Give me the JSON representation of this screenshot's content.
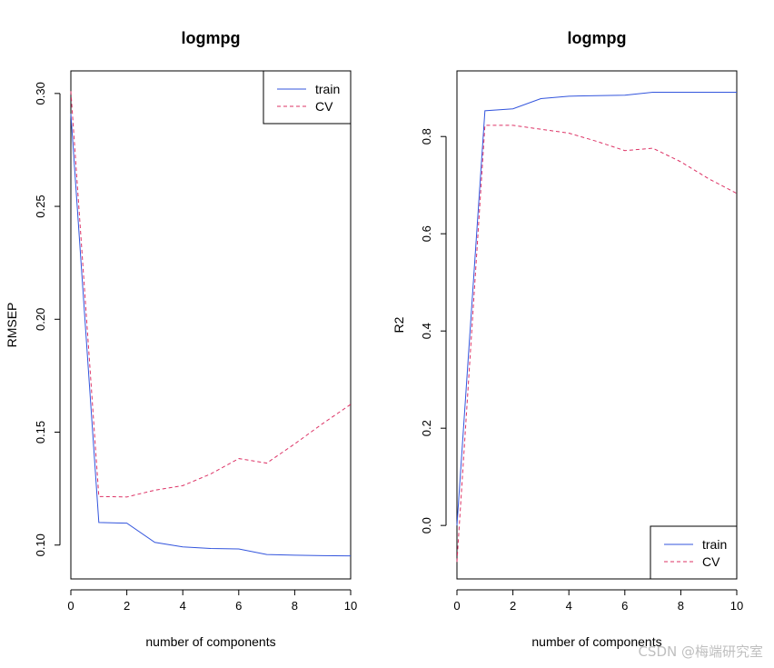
{
  "colors": {
    "train": "#3355dd",
    "cv": "#dd3366",
    "frame": "#000000"
  },
  "watermark": "CSDN @梅端研究室",
  "chart_data": [
    {
      "type": "line",
      "title": "logmpg",
      "xlabel": "number of components",
      "ylabel": "RMSEP",
      "xlim": [
        0,
        10
      ],
      "ylim": [
        0.085,
        0.31
      ],
      "xticks": [
        0,
        2,
        4,
        6,
        8,
        10
      ],
      "yticks": [
        0.1,
        0.15,
        0.2,
        0.25,
        0.3
      ],
      "ytick_labels": [
        "0.10",
        "0.15",
        "0.20",
        "0.25",
        "0.30"
      ],
      "legend_position": "top-right",
      "x": [
        0,
        1,
        2,
        3,
        4,
        5,
        6,
        7,
        8,
        9,
        10
      ],
      "series": [
        {
          "name": "train",
          "style": "solid",
          "values": [
            0.291,
            0.11,
            0.1097,
            0.1012,
            0.0992,
            0.0985,
            0.0983,
            0.0958,
            0.0955,
            0.0953,
            0.0952
          ]
        },
        {
          "name": "CV",
          "style": "dashed",
          "values": [
            0.301,
            0.1215,
            0.1213,
            0.1243,
            0.1263,
            0.1315,
            0.1383,
            0.1363,
            0.1448,
            0.1538,
            0.1623
          ]
        }
      ]
    },
    {
      "type": "line",
      "title": "logmpg",
      "xlabel": "number of components",
      "ylabel": "R2",
      "xlim": [
        0,
        10
      ],
      "ylim": [
        -0.11,
        0.935
      ],
      "xticks": [
        0,
        2,
        4,
        6,
        8,
        10
      ],
      "yticks": [
        0.0,
        0.2,
        0.4,
        0.6,
        0.8
      ],
      "ytick_labels": [
        "0.0",
        "0.2",
        "0.4",
        "0.6",
        "0.8"
      ],
      "legend_position": "bottom-right",
      "x": [
        0,
        1,
        2,
        3,
        4,
        5,
        6,
        7,
        8,
        9,
        10
      ],
      "series": [
        {
          "name": "train",
          "style": "solid",
          "values": [
            0.0,
            0.853,
            0.857,
            0.878,
            0.883,
            0.884,
            0.885,
            0.891,
            0.891,
            0.891,
            0.891
          ]
        },
        {
          "name": "CV",
          "style": "dashed",
          "values": [
            -0.075,
            0.823,
            0.823,
            0.815,
            0.807,
            0.79,
            0.771,
            0.776,
            0.748,
            0.713,
            0.683
          ]
        }
      ]
    }
  ]
}
